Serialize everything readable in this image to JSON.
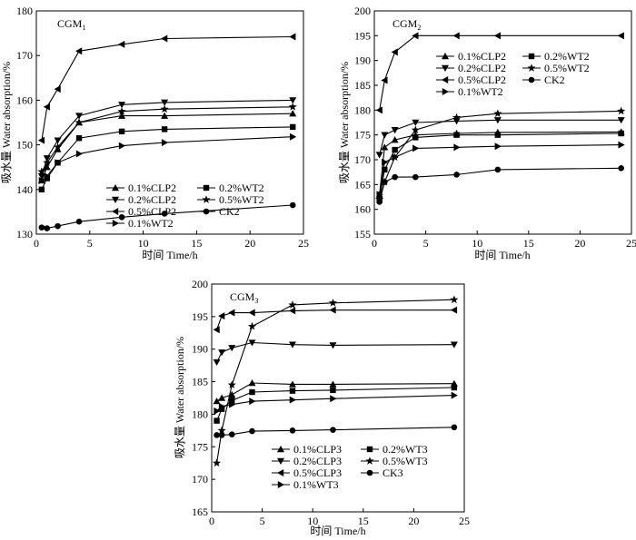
{
  "chart_data": [
    {
      "type": "line",
      "panel_id": "cgm1",
      "title_main": "CGM",
      "title_sub": "1",
      "xlabel": "时间 Time/h",
      "ylabel": "吸水量 Water absorption/%",
      "xlim": [
        0,
        25
      ],
      "ylim": [
        130,
        180
      ],
      "xticks": [
        "0",
        "5",
        "10",
        "15",
        "20",
        "25"
      ],
      "yticks": [
        "130",
        "140",
        "150",
        "160",
        "170",
        "180"
      ],
      "x": [
        0.5,
        1,
        2,
        4,
        8,
        12,
        24
      ],
      "series": [
        {
          "name": "0.1%CLP2",
          "marker": "triangle-up",
          "values": [
            142,
            145,
            149,
            155,
            156.5,
            156.5,
            157
          ]
        },
        {
          "name": "0.2%WT2",
          "marker": "square",
          "values": [
            140,
            142.5,
            146,
            151.5,
            153,
            153.5,
            154
          ]
        },
        {
          "name": "0.2%CLP2",
          "marker": "triangle-down",
          "values": [
            143,
            147,
            151,
            156.5,
            159,
            159.5,
            160
          ]
        },
        {
          "name": "0.5%WT2",
          "marker": "star",
          "values": [
            144,
            146,
            149.5,
            155,
            157.5,
            158,
            158.5
          ]
        },
        {
          "name": "0.5%CLP2",
          "marker": "triangle-left",
          "values": [
            151,
            158.5,
            162.5,
            171,
            172.5,
            173.8,
            174.2
          ]
        },
        {
          "name": "CK2",
          "marker": "circle",
          "values": [
            131.5,
            131.3,
            131.8,
            132.8,
            133.8,
            134.6,
            136.5
          ]
        },
        {
          "name": "0.1%WT2",
          "marker": "triangle-right",
          "values": [
            142,
            143,
            146,
            148,
            149.8,
            150.5,
            151.8
          ]
        }
      ]
    },
    {
      "type": "line",
      "panel_id": "cgm2",
      "title_main": "CGM",
      "title_sub": "2",
      "xlabel": "时间 Time/h",
      "ylabel": "吸水量 Water absorption/%",
      "xlim": [
        0,
        25
      ],
      "ylim": [
        155,
        200
      ],
      "xticks": [
        "0",
        "5",
        "10",
        "15",
        "20",
        "25"
      ],
      "yticks": [
        "155",
        "160",
        "165",
        "170",
        "175",
        "180",
        "185",
        "190",
        "195",
        "200"
      ],
      "x": [
        0.5,
        1,
        2,
        4,
        8,
        12,
        24
      ],
      "series": [
        {
          "name": "0.1%CLP2",
          "marker": "triangle-up",
          "values": [
            163,
            172.5,
            174,
            175,
            175.3,
            175.5,
            175.6
          ]
        },
        {
          "name": "0.2%WT2",
          "marker": "square",
          "values": [
            162,
            168,
            172,
            174.5,
            175,
            175,
            175.3
          ]
        },
        {
          "name": "0.2%CLP2",
          "marker": "triangle-down",
          "values": [
            171,
            175,
            176,
            177.5,
            177.8,
            178,
            178
          ]
        },
        {
          "name": "0.5%WT2",
          "marker": "star",
          "values": [
            162,
            165.5,
            170.5,
            176,
            178.5,
            179.3,
            179.8
          ]
        },
        {
          "name": "0.5%CLP2",
          "marker": "triangle-left",
          "values": [
            180,
            186,
            191.7,
            195,
            195,
            195,
            195
          ]
        },
        {
          "name": "CK2",
          "marker": "circle",
          "values": [
            161.5,
            165.5,
            166.5,
            166.5,
            167,
            168,
            168.3
          ]
        },
        {
          "name": "0.1%WT2",
          "marker": "triangle-right",
          "values": [
            163,
            169.5,
            170.5,
            172.3,
            172.5,
            172.7,
            173
          ]
        }
      ]
    },
    {
      "type": "line",
      "panel_id": "cgm3",
      "title_main": "CGM",
      "title_sub": "3",
      "xlabel": "时间 Time/h",
      "ylabel": "吸水量 Water absorption/%",
      "xlim": [
        0,
        25
      ],
      "ylim": [
        165,
        200
      ],
      "xticks": [
        "0",
        "5",
        "10",
        "15",
        "20",
        "25"
      ],
      "yticks": [
        "165",
        "170",
        "175",
        "180",
        "185",
        "190",
        "195",
        "200"
      ],
      "x": [
        0.5,
        1,
        2,
        4,
        8,
        12,
        24
      ],
      "series": [
        {
          "name": "0.1%CLP3",
          "marker": "triangle-up",
          "values": [
            182,
            182.5,
            183,
            184.8,
            184.6,
            184.6,
            184.7
          ]
        },
        {
          "name": "0.2%WT3",
          "marker": "square",
          "values": [
            179,
            180.8,
            182.1,
            183.4,
            183.6,
            183.7,
            184.1
          ]
        },
        {
          "name": "0.2%CLP3",
          "marker": "triangle-down",
          "values": [
            188,
            189.5,
            190.2,
            191,
            190.7,
            190.6,
            190.7
          ]
        },
        {
          "name": "0.5%WT3",
          "marker": "star",
          "values": [
            172.5,
            177.5,
            184.5,
            193.5,
            196.8,
            197.1,
            197.6
          ]
        },
        {
          "name": "0.5%CLP3",
          "marker": "triangle-left",
          "values": [
            193,
            195.1,
            195.6,
            195.6,
            195.9,
            196,
            196
          ]
        },
        {
          "name": "CK3",
          "marker": "circle",
          "values": [
            176.8,
            176.8,
            176.9,
            177.4,
            177.5,
            177.6,
            178
          ]
        },
        {
          "name": "0.1%WT3",
          "marker": "triangle-right",
          "values": [
            180.5,
            181.2,
            181.5,
            182,
            182.2,
            182.4,
            182.9
          ]
        }
      ]
    }
  ]
}
